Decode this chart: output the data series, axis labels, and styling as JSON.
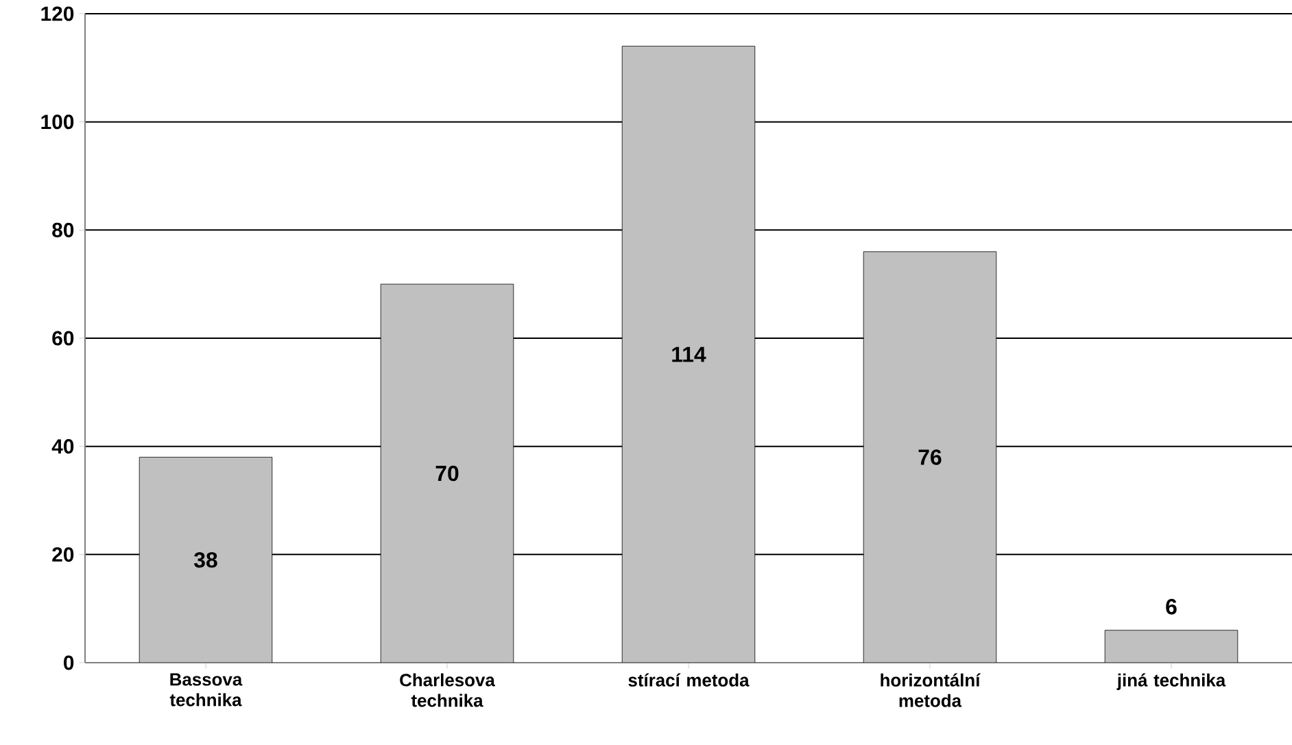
{
  "chart_data": {
    "type": "bar",
    "categories": [
      "Bassova technika",
      "Charlesova technika",
      "stírací metoda",
      "horizontální metoda",
      "jiná technika"
    ],
    "values": [
      38,
      70,
      114,
      76,
      6
    ],
    "color": "#c0c0c0",
    "ylim": [
      0,
      120
    ],
    "yticks": [
      0,
      20,
      40,
      60,
      80,
      100,
      120
    ],
    "grid": "y",
    "data_labels": true
  }
}
